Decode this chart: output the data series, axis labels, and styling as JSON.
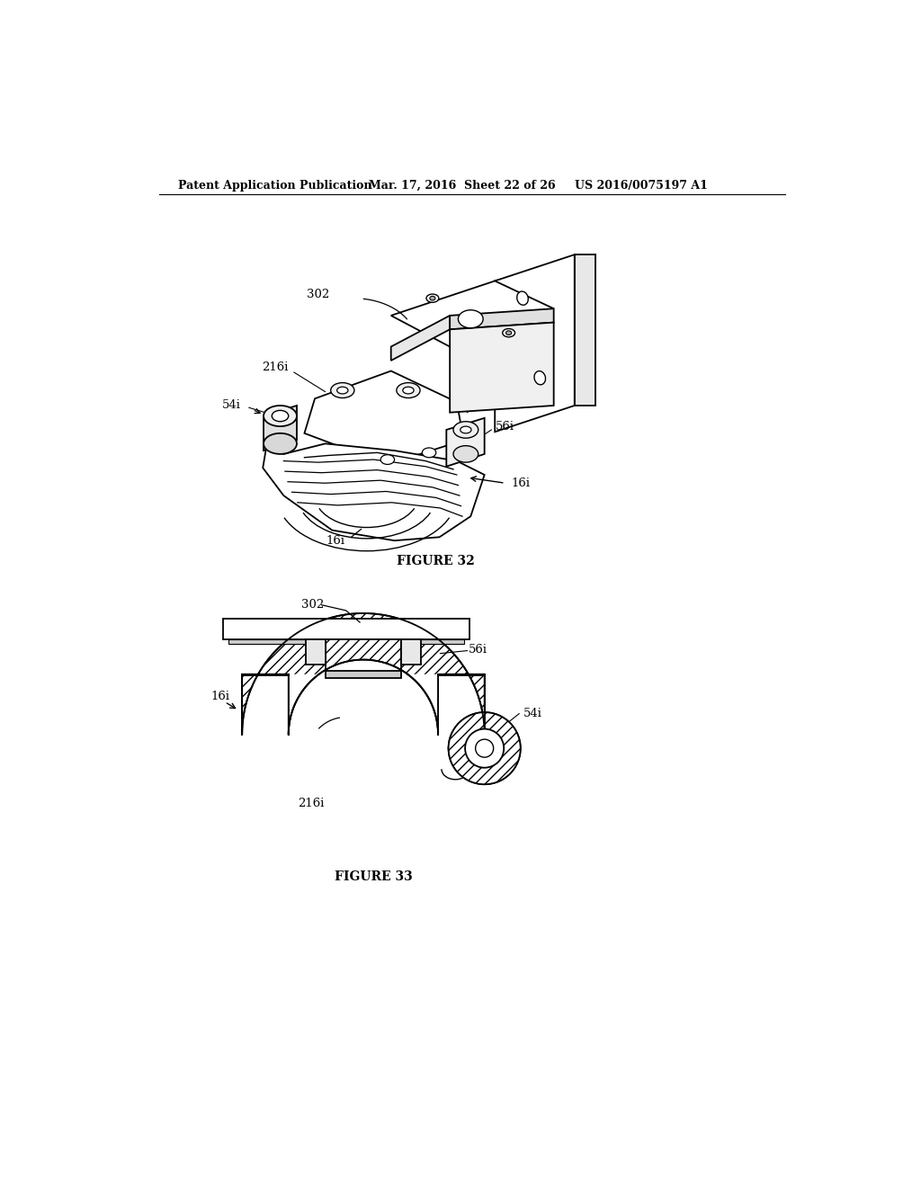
{
  "page_width": 10.24,
  "page_height": 13.2,
  "bg_color": "#ffffff",
  "header_text1": "Patent Application Publication",
  "header_text2": "Mar. 17, 2016  Sheet 22 of 26",
  "header_text3": "US 2016/0075197 A1",
  "fig32_label": "FIGURE 32",
  "fig33_label": "FIGURE 33",
  "line_color": "#000000",
  "text_color": "#000000",
  "header_fontsize": 9,
  "label_fontsize": 9.5,
  "figure_label_fontsize": 10
}
